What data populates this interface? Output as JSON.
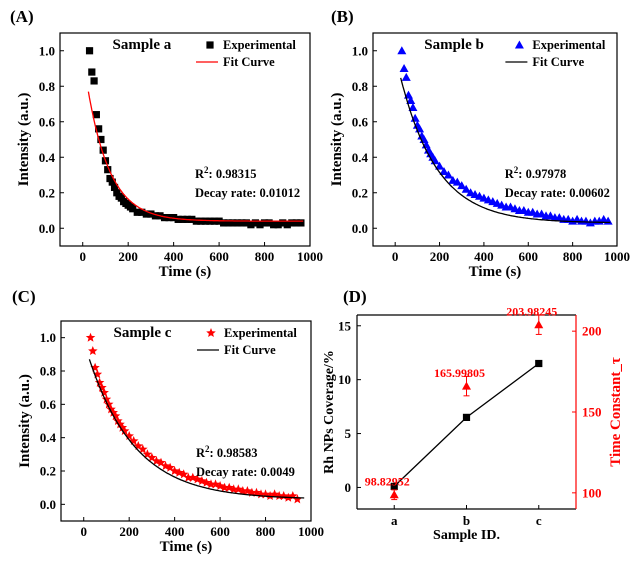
{
  "chart_data": [
    {
      "panel": "(A)",
      "type": "scatter",
      "sample_label": "Sample a",
      "xlabel": "Time (s)",
      "ylabel": "Intensity (a.u.)",
      "xlim": [
        -100,
        1000
      ],
      "ylim": [
        -0.1,
        1.1
      ],
      "xticks": [
        "0",
        "200",
        "400",
        "600",
        "800",
        "1000"
      ],
      "yticks": [
        "0.0",
        "0.2",
        "0.4",
        "0.6",
        "0.8",
        "1.0"
      ],
      "marker": "square",
      "marker_color": "#000000",
      "fit_color": "#ff0000",
      "legend": [
        "Experimental",
        "Fit Curve"
      ],
      "legend_placement": "top-right",
      "r2_label": "R",
      "r2_value": "0.98315",
      "decay_label": "Decay rate:",
      "decay_value": "0.01012",
      "fit": {
        "a": 0.94,
        "k": 0.01012,
        "c": 0.04
      },
      "series": [
        {
          "name": "Experimental",
          "x": [
            30,
            40,
            50,
            60,
            70,
            80,
            90,
            100,
            110,
            120,
            130,
            140,
            150,
            160,
            170,
            180,
            190,
            200,
            210,
            220,
            240,
            260,
            280,
            300,
            320,
            340,
            360,
            380,
            400,
            420,
            440,
            460,
            480,
            500,
            520,
            540,
            560,
            580,
            600,
            620,
            640,
            660,
            680,
            700,
            720,
            740,
            760,
            780,
            800,
            820,
            840,
            860,
            880,
            900,
            920,
            940,
            960
          ],
          "y": [
            1.0,
            0.88,
            0.83,
            0.64,
            0.56,
            0.5,
            0.44,
            0.38,
            0.33,
            0.28,
            0.26,
            0.23,
            0.2,
            0.18,
            0.17,
            0.15,
            0.14,
            0.13,
            0.12,
            0.11,
            0.09,
            0.09,
            0.08,
            0.08,
            0.07,
            0.07,
            0.06,
            0.06,
            0.06,
            0.05,
            0.05,
            0.05,
            0.05,
            0.04,
            0.04,
            0.04,
            0.04,
            0.04,
            0.04,
            0.03,
            0.03,
            0.03,
            0.03,
            0.03,
            0.03,
            0.02,
            0.03,
            0.02,
            0.03,
            0.03,
            0.02,
            0.02,
            0.03,
            0.02,
            0.03,
            0.03,
            0.03
          ]
        },
        {
          "name": "Fit Curve"
        }
      ]
    },
    {
      "panel": "(B)",
      "type": "scatter",
      "sample_label": "Sample b",
      "xlabel": "Time (s)",
      "ylabel": "Intensity (a.u.)",
      "xlim": [
        -100,
        1000
      ],
      "ylim": [
        -0.1,
        1.1
      ],
      "xticks": [
        "0",
        "200",
        "400",
        "600",
        "800",
        "1000"
      ],
      "yticks": [
        "0.0",
        "0.2",
        "0.4",
        "0.6",
        "0.8",
        "1.0"
      ],
      "marker": "triangle",
      "marker_color": "#0000ff",
      "fit_color": "#000000",
      "legend": [
        "Experimental",
        "Fit Curve"
      ],
      "legend_placement": "top-right",
      "r2_label": "R",
      "r2_value": "0.97978",
      "decay_label": "Decay rate:",
      "decay_value": "0.00602",
      "fit": {
        "a": 0.95,
        "k": 0.00602,
        "c": 0.03
      },
      "series": [
        {
          "name": "Experimental",
          "x": [
            30,
            40,
            50,
            60,
            70,
            80,
            90,
            100,
            110,
            120,
            130,
            140,
            150,
            160,
            170,
            180,
            200,
            220,
            240,
            260,
            280,
            300,
            320,
            340,
            360,
            380,
            400,
            420,
            440,
            460,
            480,
            500,
            520,
            540,
            560,
            580,
            600,
            620,
            640,
            660,
            680,
            700,
            720,
            740,
            760,
            780,
            800,
            820,
            840,
            860,
            880,
            900,
            920,
            940,
            960
          ],
          "y": [
            1.0,
            0.9,
            0.85,
            0.75,
            0.72,
            0.68,
            0.62,
            0.58,
            0.56,
            0.52,
            0.5,
            0.47,
            0.44,
            0.42,
            0.4,
            0.38,
            0.35,
            0.32,
            0.3,
            0.27,
            0.26,
            0.24,
            0.22,
            0.2,
            0.19,
            0.18,
            0.17,
            0.16,
            0.15,
            0.14,
            0.13,
            0.12,
            0.12,
            0.11,
            0.1,
            0.1,
            0.09,
            0.09,
            0.08,
            0.08,
            0.07,
            0.07,
            0.06,
            0.06,
            0.05,
            0.05,
            0.04,
            0.05,
            0.04,
            0.04,
            0.03,
            0.04,
            0.04,
            0.05,
            0.04
          ]
        },
        {
          "name": "Fit Curve"
        }
      ]
    },
    {
      "panel": "(C)",
      "type": "scatter",
      "sample_label": "Sample c",
      "xlabel": "Time (s)",
      "ylabel": "Intensity (a.u.)",
      "xlim": [
        -100,
        1000
      ],
      "ylim": [
        -0.1,
        1.1
      ],
      "xticks": [
        "0",
        "200",
        "400",
        "600",
        "800",
        "1000"
      ],
      "yticks": [
        "0.0",
        "0.2",
        "0.4",
        "0.6",
        "0.8",
        "1.0"
      ],
      "marker": "star",
      "marker_color": "#ff0000",
      "fit_color": "#000000",
      "legend": [
        "Experimental",
        "Fit Curve"
      ],
      "legend_placement": "top-right",
      "r2_label": "R",
      "r2_value": "0.98583",
      "decay_label": "Decay rate:",
      "decay_value": "0.0049",
      "fit": {
        "a": 0.95,
        "k": 0.0049,
        "c": 0.03
      },
      "series": [
        {
          "name": "Experimental",
          "x": [
            30,
            40,
            50,
            60,
            70,
            80,
            90,
            100,
            110,
            120,
            130,
            140,
            150,
            160,
            170,
            180,
            200,
            220,
            240,
            260,
            280,
            300,
            320,
            340,
            360,
            380,
            400,
            420,
            440,
            460,
            480,
            500,
            520,
            540,
            560,
            580,
            600,
            620,
            640,
            660,
            680,
            700,
            720,
            740,
            760,
            780,
            800,
            820,
            840,
            860,
            880,
            900,
            920,
            940
          ],
          "y": [
            1.0,
            0.92,
            0.82,
            0.78,
            0.73,
            0.7,
            0.67,
            0.63,
            0.6,
            0.57,
            0.55,
            0.53,
            0.5,
            0.48,
            0.46,
            0.44,
            0.41,
            0.38,
            0.35,
            0.33,
            0.3,
            0.28,
            0.26,
            0.25,
            0.23,
            0.22,
            0.2,
            0.19,
            0.18,
            0.16,
            0.16,
            0.15,
            0.14,
            0.13,
            0.12,
            0.12,
            0.11,
            0.1,
            0.1,
            0.09,
            0.09,
            0.08,
            0.08,
            0.07,
            0.07,
            0.06,
            0.06,
            0.05,
            0.06,
            0.05,
            0.05,
            0.04,
            0.05,
            0.03
          ]
        },
        {
          "name": "Fit Curve"
        }
      ]
    },
    {
      "panel": "(D)",
      "type": "line",
      "xlabel": "Sample ID.",
      "ylabel": "Rh NPs Coverage/%",
      "ylabel_right": "Time Constant_τ",
      "categories": [
        "a",
        "b",
        "c"
      ],
      "ylim": [
        -2,
        16
      ],
      "yticks": [
        "0",
        "5",
        "10",
        "15"
      ],
      "ylim_right": [
        90,
        210
      ],
      "yticks_right": [
        "100",
        "150",
        "200"
      ],
      "right_axis_color": "#ff0000",
      "series": [
        {
          "axis": "left",
          "values": [
            0.1,
            6.5,
            11.5
          ],
          "color": "#000000",
          "marker": "square"
        },
        {
          "axis": "right",
          "values": [
            98.82952,
            165.99805,
            203.98245
          ],
          "errors": [
            3,
            6,
            6
          ],
          "color": "#ff0000",
          "marker": "triangle"
        }
      ],
      "annotations": [
        "98.82952",
        "165.99805",
        "203.98245"
      ]
    }
  ]
}
